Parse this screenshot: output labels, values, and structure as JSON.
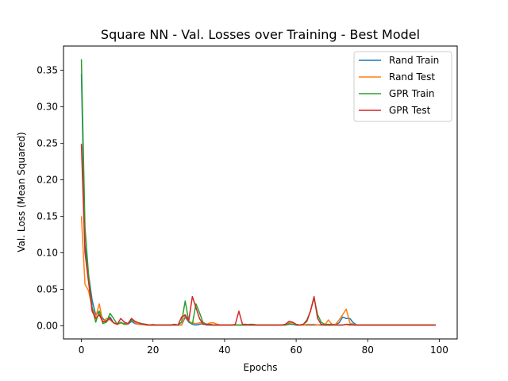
{
  "chart_data": {
    "type": "line",
    "title": "Square NN - Val. Losses over Training - Best Model",
    "xlabel": "Epochs",
    "ylabel": "Val. Loss  (Mean Squared)",
    "xlim": [
      -5,
      105
    ],
    "ylim": [
      -0.018,
      0.383
    ],
    "xticks": [
      0,
      20,
      40,
      60,
      80,
      100
    ],
    "yticks": [
      0.0,
      0.05,
      0.1,
      0.15,
      0.2,
      0.25,
      0.3,
      0.35
    ],
    "xtick_labels": [
      "0",
      "20",
      "40",
      "60",
      "80",
      "100"
    ],
    "ytick_labels": [
      "0.00",
      "0.05",
      "0.10",
      "0.15",
      "0.20",
      "0.25",
      "0.30",
      "0.35"
    ],
    "grid": false,
    "legend_position": "top-right",
    "series": [
      {
        "name": "Rand Train",
        "color": "#1f77b4",
        "values": [
          0.345,
          0.11,
          0.07,
          0.035,
          0.015,
          0.02,
          0.01,
          0.005,
          0.012,
          0.004,
          0.002,
          0.004,
          0.003,
          0.002,
          0.006,
          0.003,
          0.002,
          0.002,
          0.001,
          0.001,
          0.001,
          0.001,
          0.001,
          0.001,
          0.001,
          0.001,
          0.001,
          0.001,
          0.001,
          0.012,
          0.005,
          0.002,
          0.001,
          0.002,
          0.003,
          0.001,
          0.001,
          0.001,
          0.001,
          0.001,
          0.001,
          0.001,
          0.001,
          0.001,
          0.001,
          0.001,
          0.001,
          0.001,
          0.001,
          0.001,
          0.001,
          0.001,
          0.001,
          0.001,
          0.001,
          0.001,
          0.001,
          0.001,
          0.002,
          0.002,
          0.001,
          0.001,
          0.001,
          0.001,
          0.001,
          0.001,
          0.001,
          0.001,
          0.001,
          0.001,
          0.001,
          0.002,
          0.004,
          0.012,
          0.01,
          0.01,
          0.004,
          0.001,
          0.001,
          0.001,
          0.001,
          0.001,
          0.001,
          0.001,
          0.001,
          0.001,
          0.001,
          0.001,
          0.001,
          0.001,
          0.001,
          0.001,
          0.001,
          0.001,
          0.001,
          0.001,
          0.001,
          0.001,
          0.001,
          0.001
        ]
      },
      {
        "name": "Rand Test",
        "color": "#ff7f0e",
        "values": [
          0.15,
          0.057,
          0.048,
          0.025,
          0.012,
          0.03,
          0.005,
          0.01,
          0.008,
          0.004,
          0.002,
          0.004,
          0.002,
          0.002,
          0.01,
          0.004,
          0.002,
          0.002,
          0.001,
          0.001,
          0.002,
          0.001,
          0.001,
          0.001,
          0.001,
          0.001,
          0.002,
          0.001,
          0.001,
          0.015,
          0.006,
          0.004,
          0.003,
          0.004,
          0.005,
          0.002,
          0.004,
          0.004,
          0.002,
          0.001,
          0.001,
          0.001,
          0.001,
          0.001,
          0.001,
          0.001,
          0.001,
          0.001,
          0.002,
          0.001,
          0.001,
          0.001,
          0.001,
          0.001,
          0.001,
          0.001,
          0.001,
          0.002,
          0.005,
          0.004,
          0.002,
          0.001,
          0.001,
          0.002,
          0.002,
          0.002,
          0.001,
          0.002,
          0.001,
          0.008,
          0.002,
          0.002,
          0.008,
          0.015,
          0.023,
          0.004,
          0.002,
          0.001,
          0.001,
          0.001,
          0.001,
          0.001,
          0.001,
          0.001,
          0.001,
          0.001,
          0.001,
          0.001,
          0.001,
          0.001,
          0.001,
          0.001,
          0.001,
          0.001,
          0.001,
          0.001,
          0.001,
          0.001,
          0.001,
          0.001
        ]
      },
      {
        "name": "GPR Train",
        "color": "#2ca02c",
        "values": [
          0.365,
          0.135,
          0.07,
          0.025,
          0.005,
          0.02,
          0.003,
          0.005,
          0.017,
          0.01,
          0.002,
          0.005,
          0.002,
          0.003,
          0.008,
          0.006,
          0.004,
          0.003,
          0.002,
          0.001,
          0.001,
          0.001,
          0.001,
          0.001,
          0.001,
          0.001,
          0.001,
          0.001,
          0.005,
          0.034,
          0.006,
          0.002,
          0.03,
          0.018,
          0.004,
          0.002,
          0.001,
          0.001,
          0.001,
          0.001,
          0.001,
          0.001,
          0.001,
          0.001,
          0.001,
          0.001,
          0.001,
          0.002,
          0.002,
          0.001,
          0.001,
          0.001,
          0.001,
          0.001,
          0.001,
          0.001,
          0.001,
          0.001,
          0.003,
          0.002,
          0.001,
          0.001,
          0.002,
          0.008,
          0.02,
          0.038,
          0.015,
          0.005,
          0.002,
          0.002,
          0.002,
          0.001,
          0.001,
          0.001,
          0.002,
          0.002,
          0.001,
          0.001,
          0.001,
          0.001,
          0.001,
          0.001,
          0.001,
          0.001,
          0.001,
          0.001,
          0.001,
          0.001,
          0.001,
          0.001,
          0.001,
          0.001,
          0.001,
          0.001,
          0.001,
          0.001,
          0.001,
          0.001,
          0.001,
          0.001
        ]
      },
      {
        "name": "GPR Test",
        "color": "#d62728",
        "values": [
          0.249,
          0.1,
          0.06,
          0.02,
          0.01,
          0.015,
          0.005,
          0.007,
          0.01,
          0.004,
          0.002,
          0.01,
          0.005,
          0.003,
          0.01,
          0.006,
          0.004,
          0.002,
          0.002,
          0.001,
          0.001,
          0.001,
          0.001,
          0.001,
          0.001,
          0.001,
          0.002,
          0.001,
          0.012,
          0.015,
          0.007,
          0.04,
          0.025,
          0.01,
          0.002,
          0.002,
          0.002,
          0.001,
          0.001,
          0.001,
          0.001,
          0.001,
          0.001,
          0.002,
          0.02,
          0.002,
          0.002,
          0.001,
          0.001,
          0.001,
          0.001,
          0.001,
          0.001,
          0.001,
          0.001,
          0.001,
          0.001,
          0.002,
          0.006,
          0.005,
          0.002,
          0.001,
          0.002,
          0.006,
          0.02,
          0.04,
          0.01,
          0.002,
          0.001,
          0.001,
          0.001,
          0.001,
          0.001,
          0.001,
          0.002,
          0.001,
          0.001,
          0.001,
          0.001,
          0.001,
          0.001,
          0.001,
          0.001,
          0.001,
          0.001,
          0.001,
          0.001,
          0.001,
          0.001,
          0.001,
          0.001,
          0.001,
          0.001,
          0.001,
          0.001,
          0.001,
          0.001,
          0.001,
          0.001,
          0.001
        ]
      }
    ]
  }
}
